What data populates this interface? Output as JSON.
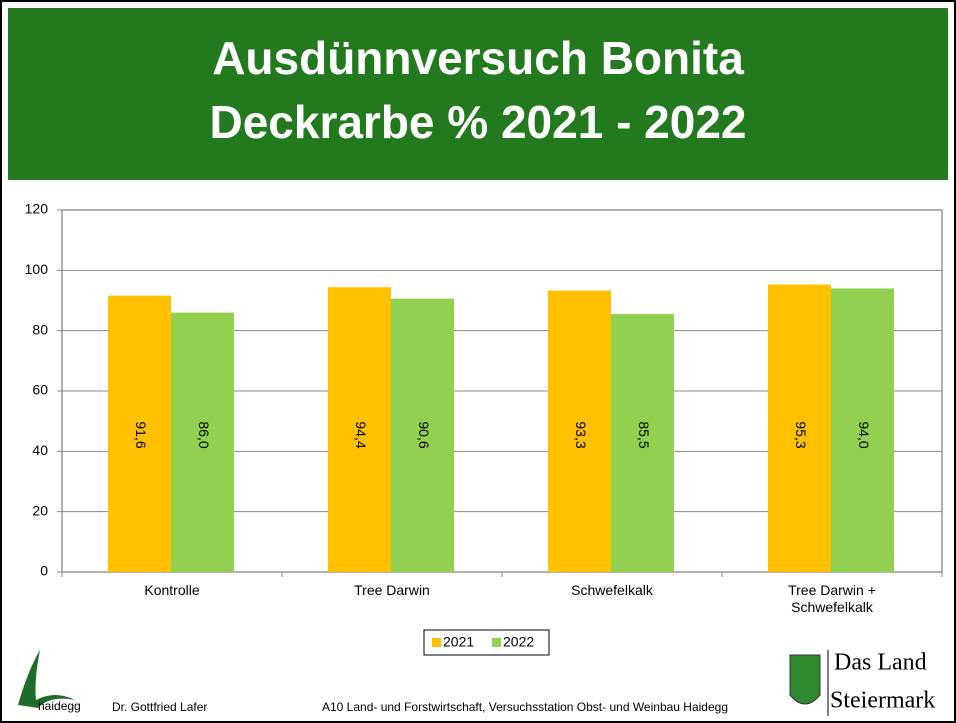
{
  "chart_data": {
    "type": "bar",
    "title": "Ausdünnversuch Bonita",
    "subtitle": "Deckrarbe % 2021 - 2022",
    "categories": [
      "Kontrolle",
      "Tree Darwin",
      "Schwefelkalk",
      "Tree Darwin + Schwefelkalk"
    ],
    "series": [
      {
        "name": "2021",
        "color": "#ffc000",
        "values": [
          91.6,
          94.4,
          93.3,
          95.3
        ],
        "value_labels": [
          "91,6",
          "94,4",
          "93,3",
          "95,3"
        ]
      },
      {
        "name": "2022",
        "color": "#92d050",
        "values": [
          86.0,
          90.6,
          85.5,
          94.0
        ],
        "value_labels": [
          "86,0",
          "90,6",
          "85,5",
          "94,0"
        ]
      }
    ],
    "ylim": [
      0,
      120
    ],
    "yticks": [
      0,
      20,
      40,
      60,
      80,
      100,
      120
    ],
    "grid": true,
    "legend": "bottom"
  },
  "footer": {
    "logo_text": "haidegg",
    "author": "Dr. Gottfried Lafer",
    "institution": "A10 Land- und Forstwirtschaft, Versuchsstation Obst- und Weinbau Haidegg",
    "brand_line1": "Das Land",
    "brand_line2": "Steiermark"
  }
}
